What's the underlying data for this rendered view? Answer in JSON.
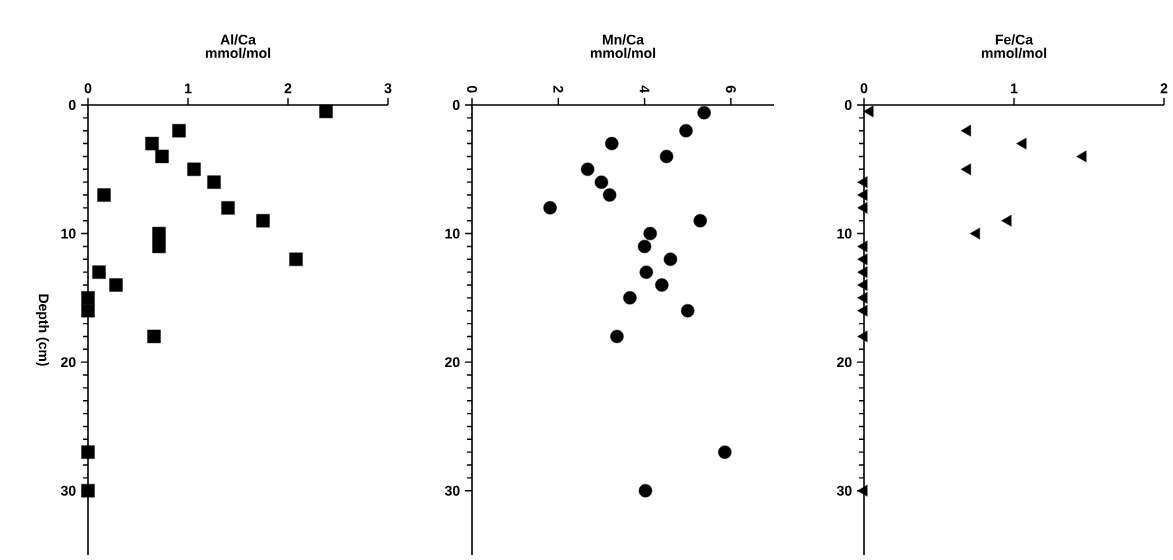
{
  "chart_data": [
    {
      "type": "scatter",
      "title": "Al/Ca",
      "xlabel": "mmol/mol",
      "ylabel": "Depth (cm)",
      "marker": "square",
      "color": "#000000",
      "xlim": [
        0,
        3
      ],
      "xticks": [
        0,
        1,
        2,
        3
      ],
      "ylim": [
        35,
        0
      ],
      "yticks": [
        0,
        10,
        20,
        30
      ],
      "x": [
        2.38,
        0.91,
        0.64,
        0.74,
        1.06,
        1.26,
        0.16,
        1.4,
        1.75,
        0.71,
        0.71,
        2.08,
        0.11,
        0.28,
        0,
        0,
        0.66,
        0,
        0
      ],
      "values": [
        0.5,
        2,
        3,
        4,
        5,
        6,
        7,
        8,
        9,
        10,
        11,
        12,
        13,
        14,
        15,
        16,
        18,
        27,
        30
      ]
    },
    {
      "type": "scatter",
      "title": "Mn/Ca",
      "xlabel": "mmol/mol",
      "marker": "circle",
      "color": "#000000",
      "xlim": [
        0,
        7
      ],
      "xticks": [
        0,
        2,
        4,
        6
      ],
      "ylim": [
        35,
        0
      ],
      "yticks": [
        0,
        10,
        20,
        30
      ],
      "x": [
        5.38,
        4.96,
        3.24,
        4.51,
        2.68,
        3.0,
        3.19,
        1.81,
        5.29,
        4.13,
        4.0,
        4.6,
        4.04,
        4.4,
        3.66,
        5.0,
        3.36,
        5.86,
        4.02
      ],
      "values": [
        0.6,
        2,
        3,
        4,
        5,
        6,
        7,
        8,
        9,
        10,
        11,
        12,
        13,
        14,
        15,
        16,
        18,
        27,
        30
      ]
    },
    {
      "type": "scatter",
      "title": "Fe/Ca",
      "xlabel": "mmol/mol",
      "marker": "triangle",
      "color": "#000000",
      "xlim": [
        0,
        2
      ],
      "xticks": [
        0,
        1,
        2
      ],
      "ylim": [
        35,
        0
      ],
      "yticks": [
        0,
        10,
        20,
        30
      ],
      "x": [
        0.04,
        0.69,
        1.06,
        1.46,
        0.69,
        0,
        0,
        0,
        0.96,
        0.75,
        0,
        0,
        0,
        0,
        0,
        0,
        0,
        0
      ],
      "values": [
        0.5,
        2,
        3,
        4,
        5,
        6,
        7,
        8,
        9,
        10,
        11,
        12,
        13,
        14,
        15,
        16,
        18,
        30
      ]
    }
  ]
}
